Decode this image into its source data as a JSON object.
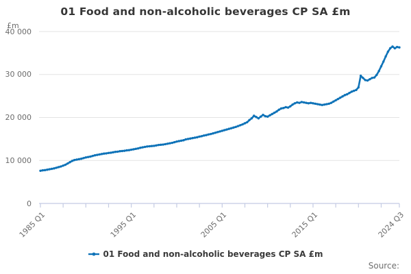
{
  "title": "01 Food and non-alcoholic beverages CP SA £m",
  "unit_label": "£m",
  "source_label": "Source:",
  "legend": {
    "label": "01 Food and non-alcoholic beverages CP SA £m"
  },
  "colors": {
    "line": "#0f73b8",
    "grid": "#e3e3e3",
    "axis": "#c4cbe3",
    "tick_text": "#6b6b6b",
    "title_text": "#363636"
  },
  "chart_data": {
    "type": "line",
    "title": "01 Food and non-alcoholic beverages CP SA £m",
    "ylabel": "£m",
    "frequency": "quarterly",
    "x_start": "1985 Q1",
    "x_end": "2024 Q3",
    "x_tick_labels": [
      "1985 Q1",
      "1995 Q1",
      "2005 Q1",
      "2015 Q1",
      "2024 Q3"
    ],
    "x_tick_positions_quarters": [
      0,
      40,
      80,
      120,
      158
    ],
    "minor_tick_every_quarters": 10,
    "y_ticks": [
      0,
      10000,
      20000,
      30000,
      40000
    ],
    "y_tick_labels": [
      "0",
      "10 000",
      "20 000",
      "30 000",
      "40 000"
    ],
    "ylim": [
      0,
      40000
    ],
    "grid": "horizontal",
    "legend_position": "bottom",
    "series": [
      {
        "name": "01 Food and non-alcoholic beverages CP SA £m",
        "values": [
          7600,
          7700,
          7750,
          7850,
          7950,
          8050,
          8150,
          8300,
          8450,
          8600,
          8800,
          9000,
          9300,
          9600,
          9900,
          10100,
          10200,
          10300,
          10400,
          10550,
          10700,
          10800,
          10900,
          11050,
          11200,
          11300,
          11400,
          11500,
          11600,
          11650,
          11750,
          11800,
          11900,
          12000,
          12050,
          12150,
          12200,
          12250,
          12350,
          12400,
          12500,
          12600,
          12700,
          12800,
          12950,
          13050,
          13150,
          13250,
          13300,
          13350,
          13400,
          13500,
          13600,
          13650,
          13700,
          13800,
          13900,
          14000,
          14100,
          14250,
          14400,
          14500,
          14600,
          14700,
          14900,
          15000,
          15100,
          15200,
          15300,
          15400,
          15550,
          15650,
          15800,
          15900,
          16050,
          16150,
          16300,
          16450,
          16600,
          16750,
          16900,
          17050,
          17200,
          17350,
          17500,
          17650,
          17800,
          18000,
          18200,
          18400,
          18650,
          18900,
          19400,
          19800,
          20400,
          20100,
          19800,
          20200,
          20600,
          20300,
          20200,
          20500,
          20800,
          21100,
          21400,
          21800,
          22100,
          22200,
          22400,
          22300,
          22600,
          23000,
          23300,
          23500,
          23400,
          23600,
          23500,
          23400,
          23300,
          23400,
          23300,
          23200,
          23100,
          23000,
          22900,
          23000,
          23100,
          23200,
          23400,
          23700,
          24000,
          24300,
          24600,
          24900,
          25200,
          25400,
          25700,
          26000,
          26200,
          26400,
          27000,
          29700,
          29200,
          28700,
          28600,
          28900,
          29200,
          29300,
          29900,
          30800,
          31900,
          33000,
          34200,
          35300,
          36100,
          36500,
          36100,
          36400,
          36300
        ]
      }
    ]
  }
}
